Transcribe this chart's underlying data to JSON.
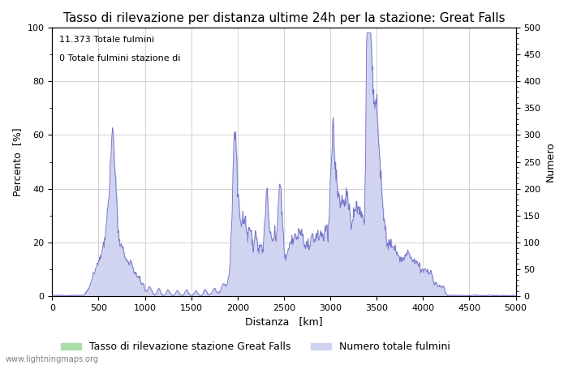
{
  "title": "Tasso di rilevazione per distanza ultime 24h per la stazione: Great Falls",
  "annotation_line1": "11.373 Totale fulmini",
  "annotation_line2": "0 Totale fulmini stazione di",
  "xlabel": "Distanza   [km]",
  "ylabel_left": "Percento  [%]",
  "ylabel_right": "Numero",
  "xlim": [
    0,
    5000
  ],
  "ylim_left": [
    0,
    100
  ],
  "ylim_right": [
    0,
    500
  ],
  "xticks": [
    0,
    500,
    1000,
    1500,
    2000,
    2500,
    3000,
    3500,
    4000,
    4500,
    5000
  ],
  "yticks_left": [
    0,
    20,
    40,
    60,
    80,
    100
  ],
  "yticks_right": [
    0,
    50,
    100,
    150,
    200,
    250,
    300,
    350,
    400,
    450,
    500
  ],
  "legend_green_label": "Tasso di rilevazione stazione Great Falls",
  "legend_blue_label": "Numero totale fulmini",
  "watermark": "www.lightningmaps.org",
  "green_color": "#aaddaa",
  "blue_fill_color": "#d0d4f0",
  "blue_line_color": "#7070c8",
  "background_color": "#ffffff",
  "grid_color": "#c0c0c0",
  "title_fontsize": 11,
  "label_fontsize": 9,
  "tick_fontsize": 8,
  "annotation_fontsize": 8
}
